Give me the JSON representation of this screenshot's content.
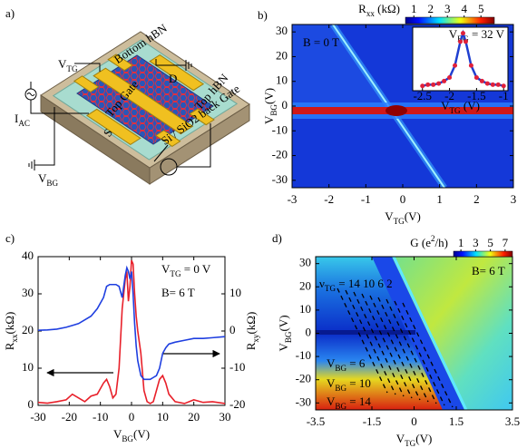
{
  "panel_a": {
    "label": "a)",
    "bottom_hbn": "Bottom hBN",
    "v_tg": {
      "text": "V",
      "sub": "TG"
    },
    "i_ac": {
      "text": "I",
      "sub": "AC"
    },
    "top_gate": "Top Gate",
    "drain": "D",
    "source": "S",
    "top_hbn": "Top hBN",
    "back_gate": "Si / SiO2 back Gate",
    "v_bg": {
      "text": "V",
      "sub": "BG"
    }
  },
  "chart_data": [
    {
      "type": "heatmap",
      "panel_label": "b)",
      "annotation": "B = 0 T",
      "colorbar": {
        "label": {
          "text": "R",
          "sub": "xx",
          "tail": " (kΩ)"
        },
        "ticks": [
          1,
          2,
          3,
          4,
          5
        ],
        "lim": [
          0.5,
          5.8
        ]
      },
      "xlabel": {
        "text": "V",
        "sub": "TG",
        "tail": "(V)"
      },
      "ylabel": {
        "text": "V",
        "sub": "BG",
        "tail": "(V)"
      },
      "xlim": [
        -3,
        3
      ],
      "xticks": [
        -3,
        -2,
        -1,
        0,
        1,
        2,
        3
      ],
      "ylim": [
        -33,
        33
      ],
      "yticks": [
        -30,
        -20,
        -10,
        0,
        10,
        20,
        30
      ],
      "inset": {
        "type": "line",
        "annotation": {
          "text": "V",
          "sub": "BG",
          "tail": " = 32 V"
        },
        "xlabel": {
          "text": "V",
          "sub": "TG",
          "tail": " (V)"
        },
        "xlim": [
          -2.68,
          -0.92
        ],
        "xticks": [
          -2.5,
          -2,
          -1.5,
          -1
        ],
        "ylim": [
          0.5,
          5.8
        ],
        "x": [
          -2.5,
          -2.4,
          -2.3,
          -2.2,
          -2.1,
          -2.0,
          -1.9,
          -1.8,
          -1.75,
          -1.7,
          -1.6,
          -1.5,
          -1.4,
          -1.3,
          -1.2,
          -1.1,
          -1.0
        ],
        "values": [
          0.9,
          1.0,
          1.0,
          1.1,
          1.3,
          1.6,
          2.6,
          4.6,
          5.3,
          4.6,
          2.6,
          1.6,
          1.3,
          1.1,
          1.0,
          1.0,
          0.9
        ],
        "line_color": "#1f3fd0",
        "marker_color": "#e0203a"
      }
    },
    {
      "type": "line",
      "panel_label": "c)",
      "annotation_1": {
        "text": "V",
        "sub": "TG",
        "tail": " = 0 V"
      },
      "annotation_2": "B= 6 T",
      "xlabel": {
        "text": "V",
        "sub": "BG",
        "tail": "(V)"
      },
      "ylabel": {
        "text": "R",
        "sub": "xx",
        "tail": "(kΩ)"
      },
      "y2label": {
        "text": "R",
        "sub": "xy",
        "tail": "(kΩ)"
      },
      "xlim": [
        -30,
        30
      ],
      "xticks": [
        -30,
        -20,
        -10,
        0,
        10,
        20,
        30
      ],
      "ylim": [
        0,
        40
      ],
      "yticks": [
        0,
        10,
        20,
        30,
        40
      ],
      "y2lim": [
        -20,
        20
      ],
      "y2ticks": [
        -20,
        -10,
        0,
        10
      ],
      "x": [
        -30,
        -27,
        -24,
        -21,
        -19,
        -17,
        -15,
        -13,
        -11,
        -9,
        -8,
        -7,
        -6,
        -5,
        -4,
        -3,
        -2,
        -1.5,
        -1,
        -0.5,
        0,
        0.5,
        1,
        1.5,
        2,
        3,
        4,
        5,
        6,
        7,
        8,
        9,
        10,
        11,
        12,
        14,
        17,
        20,
        23,
        26,
        30
      ],
      "series": [
        {
          "color": "#e8202a",
          "axis": "y",
          "values": [
            0.8,
            0.6,
            1.0,
            1.5,
            3,
            2,
            1,
            2.5,
            3,
            6,
            7,
            5,
            2,
            3,
            10,
            26,
            34,
            36,
            28,
            32,
            39,
            38,
            30,
            24,
            20,
            14,
            4,
            1,
            0.5,
            1,
            4,
            7,
            8,
            6,
            3,
            1,
            0.5,
            1.5,
            0.8,
            1,
            0.5
          ]
        },
        {
          "color": "#1f3fe0",
          "axis": "y2",
          "values": [
            0.2,
            0.3,
            0.5,
            1,
            1.5,
            2,
            3,
            4,
            6,
            9,
            12,
            12.5,
            12.5,
            12.5,
            12,
            9,
            15,
            17,
            16,
            14,
            16,
            10,
            2,
            -4,
            -8,
            -12,
            -13,
            -13,
            -13,
            -12.5,
            -12,
            -10,
            -6,
            -4.5,
            -3.5,
            -3,
            -2.5,
            -2,
            -2,
            -1.8,
            -1.5
          ]
        }
      ]
    },
    {
      "type": "heatmap",
      "panel_label": "d)",
      "annotation": "B= 6 T",
      "filling_label": {
        "text": "ν",
        "sub": "TG",
        "tail": " = 14 10  6  2"
      },
      "level_labels": [
        {
          "text": "V",
          "sub": "BG",
          "tail": " = 6"
        },
        {
          "text": "V",
          "sub": "BG",
          "tail": " = 10"
        },
        {
          "text": "V",
          "sub": "BG",
          "tail": " = 14"
        }
      ],
      "colorbar": {
        "label": {
          "text": "G (e",
          "sup": "2",
          "tail": "/h)"
        },
        "ticks": [
          1,
          3,
          5,
          7
        ],
        "lim": [
          0,
          8
        ]
      },
      "xlabel": {
        "text": "V",
        "sub": "TG",
        "tail": "(V)"
      },
      "ylabel": {
        "text": "V",
        "sub": "BG",
        "tail": "(V)"
      },
      "xlim": [
        -3.5,
        3.5
      ],
      "xticks": [
        -3.5,
        -1.5,
        0,
        1.5,
        3.5
      ],
      "ylim": [
        -33,
        33
      ],
      "yticks": [
        -30,
        -20,
        -10,
        0,
        10,
        20,
        30
      ]
    }
  ]
}
